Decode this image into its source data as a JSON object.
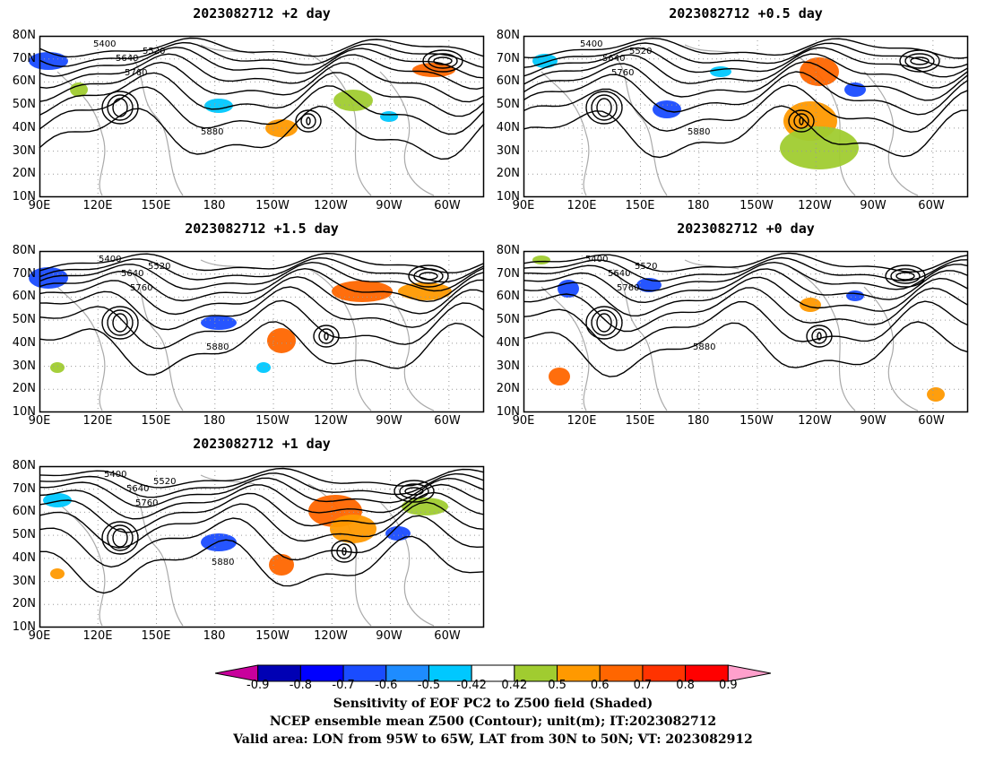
{
  "panels": [
    {
      "id": "p2",
      "title": "2023082712  +2 day"
    },
    {
      "id": "p05",
      "title": "2023082712  +0.5 day"
    },
    {
      "id": "p15",
      "title": "2023082712  +1.5 day"
    },
    {
      "id": "p0",
      "title": "2023082712  +0 day"
    },
    {
      "id": "p1",
      "title": "2023082712  +1 day"
    }
  ],
  "lat_labels": [
    "80N",
    "70N",
    "60N",
    "50N",
    "40N",
    "30N",
    "20N",
    "10N"
  ],
  "lon_labels": [
    "90E",
    "120E",
    "150E",
    "180",
    "150W",
    "120W",
    "90W",
    "60W"
  ],
  "contour_labels": [
    "5400",
    "5520",
    "5640",
    "5760",
    "5880"
  ],
  "colorbar": {
    "ticks": [
      "-0.9",
      "-0.8",
      "-0.7",
      "-0.6",
      "-0.5",
      "-0.42",
      "0.42",
      "0.5",
      "0.6",
      "0.7",
      "0.8",
      "0.9"
    ],
    "colors": [
      "#c8009c",
      "#0000b4",
      "#0000ff",
      "#1a4cff",
      "#1e8cff",
      "#00c8ff",
      "#ffffff",
      "#a0cc30",
      "#ff9900",
      "#ff6600",
      "#ff3300",
      "#ff0000",
      "#ffa0cc"
    ]
  },
  "caption": {
    "line1": "Sensitivity of EOF PC2 to Z500 field (Shaded)",
    "line2": "NCEP ensemble mean Z500 (Contour); unit(m); IT:2023082712",
    "line3": "Valid area: LON from 95W to 65W, LAT from 30N to 50N; VT: 2023082912"
  }
}
